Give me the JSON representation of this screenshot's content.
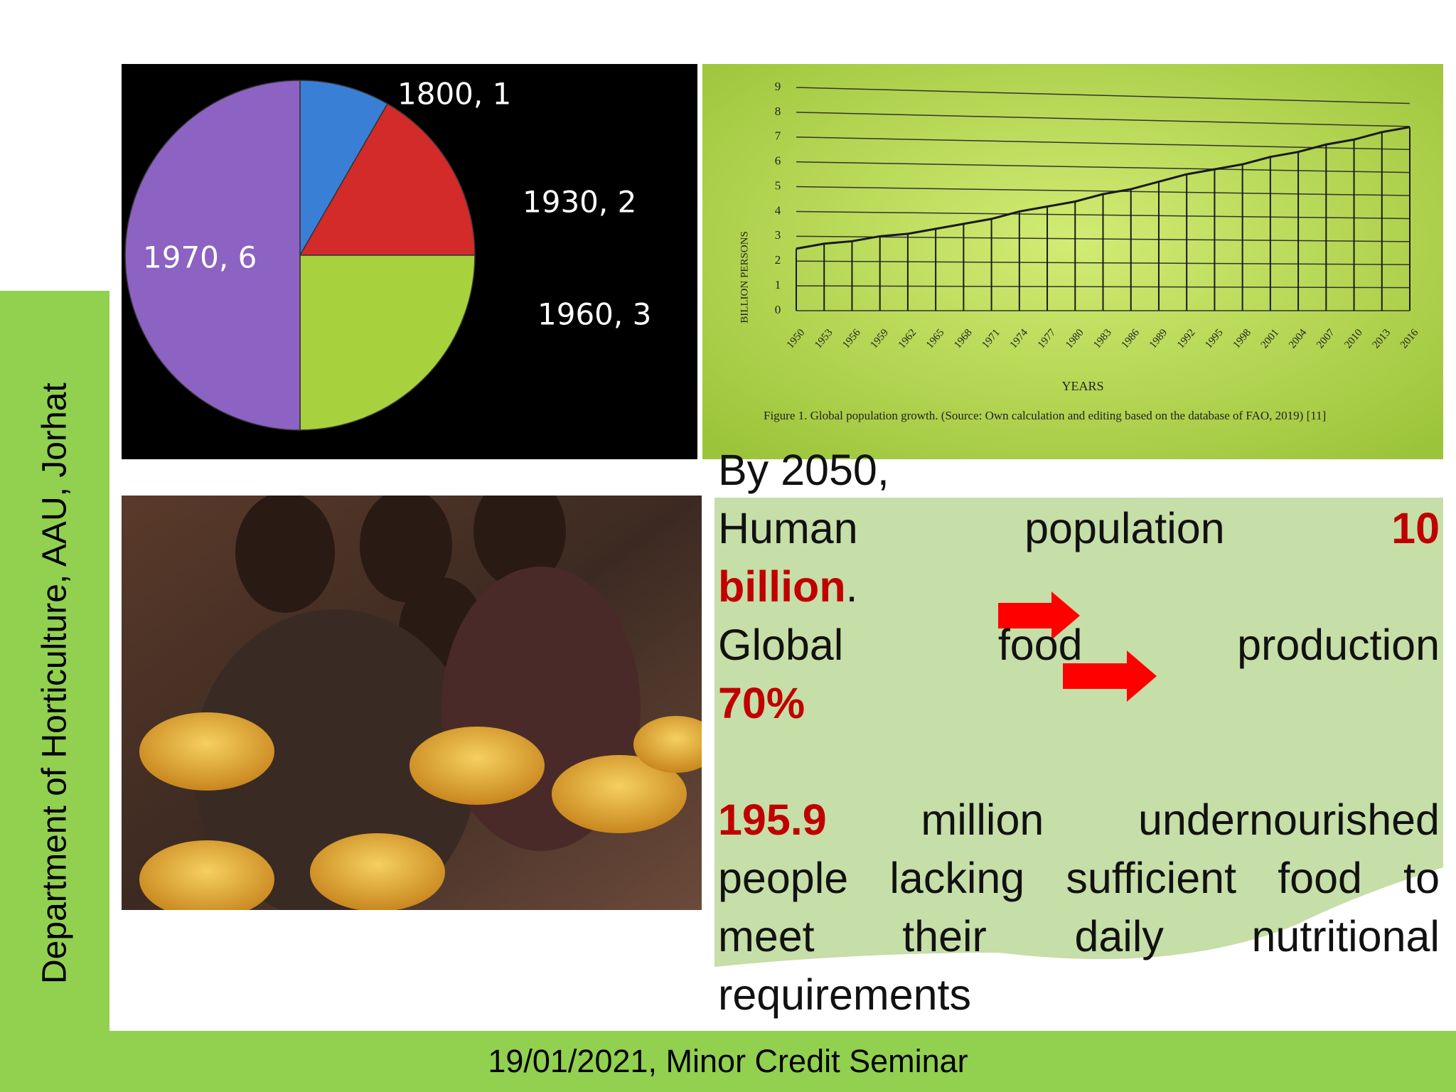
{
  "sidebar": "Department of Horticulture, AAU, Jorhat",
  "footer": "19/01/2021, Minor Credit Seminar",
  "chart_data": [
    {
      "type": "pie",
      "categories": [
        "1800",
        "1930",
        "1960",
        "1970"
      ],
      "values": [
        1,
        2,
        3,
        6
      ],
      "value_labels": [
        "1800, 1",
        "1930, 2",
        "1960, 3",
        "1970, 6"
      ],
      "colors": [
        "#3a7fd6",
        "#d32a2a",
        "#a8d13e",
        "#8c62c2"
      ]
    },
    {
      "type": "line",
      "ylabel": "BILLION PERSONS",
      "xlabel": "YEARS",
      "caption": "Figure 1. Global population growth. (Source: Own calculation and editing based on the database of FAO, 2019) [11]",
      "x": [
        1950,
        1953,
        1956,
        1959,
        1962,
        1965,
        1968,
        1971,
        1974,
        1977,
        1980,
        1983,
        1986,
        1989,
        1992,
        1995,
        1998,
        2001,
        2004,
        2007,
        2010,
        2013,
        2016
      ],
      "values": [
        2.5,
        2.7,
        2.8,
        3.0,
        3.1,
        3.3,
        3.5,
        3.7,
        4.0,
        4.2,
        4.4,
        4.7,
        4.9,
        5.2,
        5.5,
        5.7,
        5.9,
        6.2,
        6.4,
        6.7,
        6.9,
        7.2,
        7.4
      ],
      "color": "#1a1a1a",
      "xlim": [
        1950,
        2016
      ],
      "xticks": [
        1950,
        1953,
        1956,
        1959,
        1962,
        1965,
        1968,
        1971,
        1974,
        1977,
        1980,
        1983,
        1986,
        1989,
        1992,
        1995,
        1998,
        2001,
        2004,
        2007,
        2010,
        2013,
        2016
      ],
      "ylim": [
        0,
        9
      ],
      "yticks": [
        0,
        1,
        2,
        3,
        4,
        5,
        6,
        7,
        8,
        9
      ],
      "grid": true
    }
  ],
  "text": {
    "intro": "By 2050,",
    "population_label": "Human population",
    "population_number": "10",
    "population_unit": "billion",
    "population_end": ".",
    "food_label_1": "Global",
    "food_label_2": "food",
    "food_label_3": "production",
    "food_value": "70%",
    "hunger_value": "195.9",
    "hunger_line_1": "million undernourished",
    "hunger_line_2": "people lacking sufficient food to",
    "hunger_line_3": "meet their daily nutritional",
    "hunger_line_4": "requirements"
  }
}
